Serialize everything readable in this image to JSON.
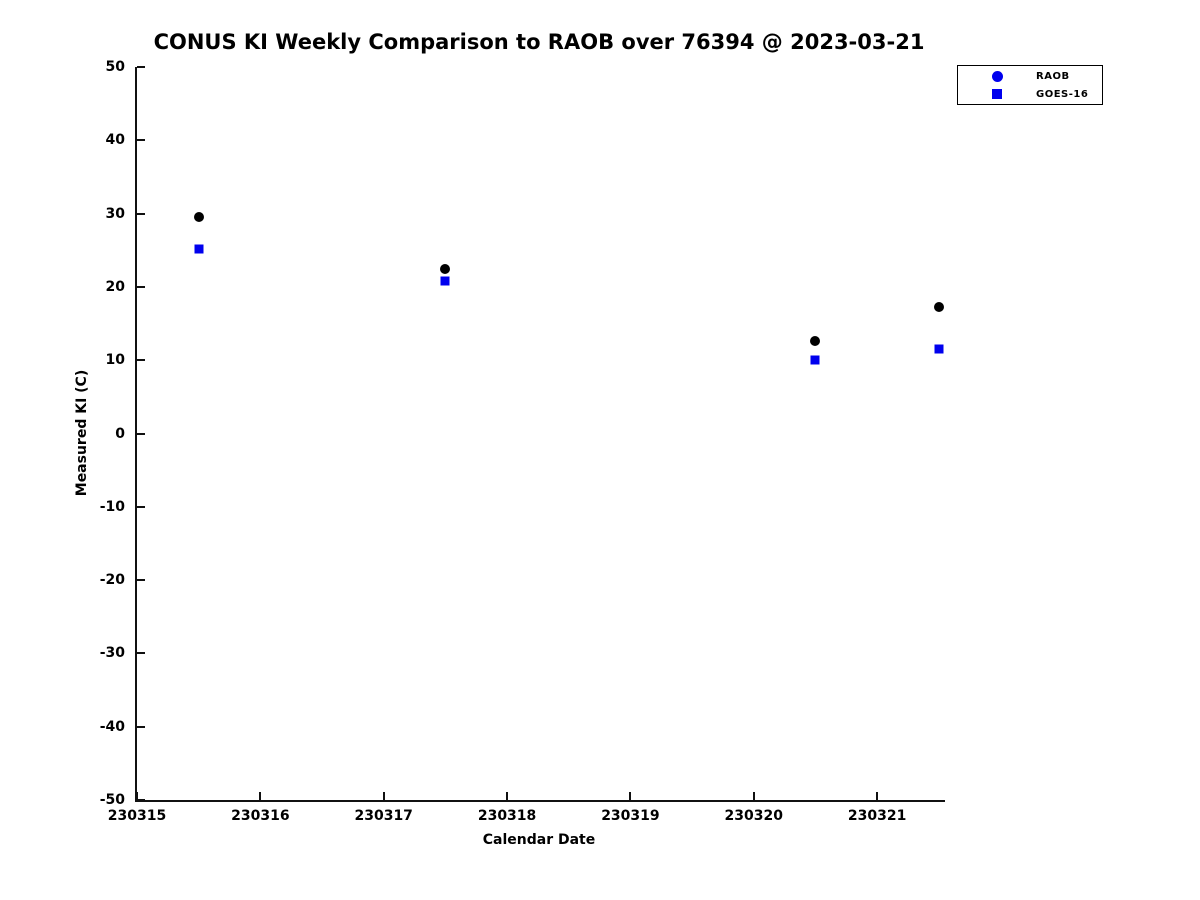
{
  "figure": {
    "title": "CONUS KI Weekly Comparison to RAOB over 76394 @ 2023-03-21",
    "xlabel": "Calendar Date",
    "ylabel": "Measured KI (C)"
  },
  "legend": {
    "position": "top-right",
    "items": [
      {
        "label": "RAOB",
        "marker": "circle",
        "color": "#0000EE"
      },
      {
        "label": "GOES-16",
        "marker": "square",
        "color": "#0000EE"
      }
    ]
  },
  "chart_data": {
    "type": "scatter",
    "title": "CONUS KI Weekly Comparison to RAOB over 76394 @ 2023-03-21",
    "xlabel": "Calendar Date",
    "ylabel": "Measured KI (C)",
    "xlim": [
      230315,
      230321.55
    ],
    "ylim": [
      -50,
      50
    ],
    "x_ticks": [
      230315,
      230316,
      230317,
      230318,
      230319,
      230320,
      230321
    ],
    "y_ticks": [
      -50,
      -40,
      -30,
      -20,
      -10,
      0,
      10,
      20,
      30,
      40,
      50
    ],
    "grid": false,
    "legend_position": "top-right",
    "series": [
      {
        "name": "RAOB",
        "marker": "circle",
        "color": "#000000",
        "points": [
          [
            230315.5,
            29.5
          ],
          [
            230317.5,
            22.4
          ],
          [
            230320.5,
            12.6
          ],
          [
            230321.5,
            17.2
          ]
        ]
      },
      {
        "name": "GOES-16",
        "marker": "square",
        "color": "#0000EE",
        "points": [
          [
            230315.5,
            25.2
          ],
          [
            230317.5,
            20.8
          ],
          [
            230320.5,
            10.0
          ],
          [
            230321.5,
            11.5
          ]
        ]
      }
    ]
  }
}
